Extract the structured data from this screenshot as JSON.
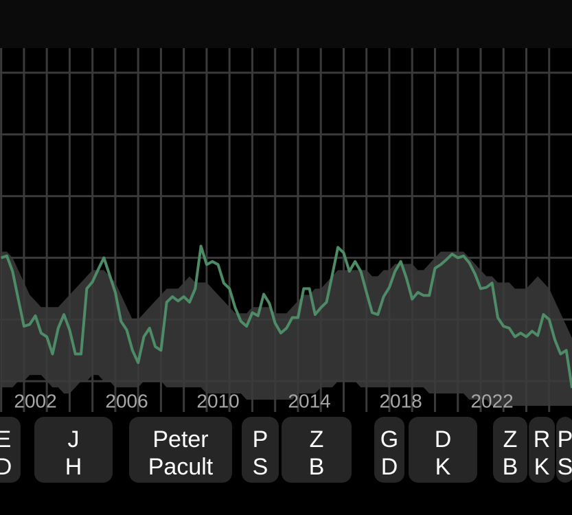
{
  "chart_data": {
    "type": "line",
    "xlim": [
      2000.95,
      2026
    ],
    "ylim": [
      5,
      64
    ],
    "xticks": [
      2002,
      2006,
      2010,
      2014,
      2018,
      2022
    ],
    "xgrid": [
      2001,
      2002,
      2003,
      2004,
      2005,
      2006,
      2007,
      2008,
      2009,
      2010,
      2011,
      2012,
      2013,
      2014,
      2015,
      2016,
      2017,
      2018,
      2019,
      2020,
      2021,
      2022,
      2023,
      2024,
      2025
    ],
    "yticks": [
      10,
      20,
      30,
      40,
      50,
      60
    ],
    "grid": true,
    "x": [
      2001,
      2001.25,
      2001.5,
      2001.75,
      2002,
      2002.25,
      2002.5,
      2002.75,
      2003,
      2003.25,
      2003.5,
      2003.75,
      2004,
      2004.25,
      2004.5,
      2004.75,
      2005,
      2005.25,
      2005.5,
      2005.75,
      2006,
      2006.25,
      2006.5,
      2006.75,
      2007,
      2007.25,
      2007.5,
      2007.75,
      2008,
      2008.25,
      2008.5,
      2008.75,
      2009,
      2009.25,
      2009.5,
      2009.75,
      2010,
      2010.25,
      2010.5,
      2010.75,
      2011,
      2011.25,
      2011.5,
      2011.75,
      2012,
      2012.25,
      2012.5,
      2012.75,
      2013,
      2013.25,
      2013.5,
      2013.75,
      2014,
      2014.25,
      2014.5,
      2014.75,
      2015,
      2015.25,
      2015.5,
      2015.75,
      2016,
      2016.25,
      2016.5,
      2016.75,
      2017,
      2017.25,
      2017.5,
      2017.75,
      2018,
      2018.25,
      2018.5,
      2018.75,
      2019,
      2019.25,
      2019.5,
      2019.75,
      2020,
      2020.25,
      2020.5,
      2020.75,
      2021,
      2021.25,
      2021.5,
      2021.75,
      2022,
      2022.25,
      2022.5,
      2022.75,
      2023,
      2023.25,
      2023.5,
      2023.75,
      2024,
      2024.25,
      2024.5,
      2024.75,
      2025,
      2025.25,
      2025.5,
      2025.75,
      2026
    ],
    "series": [
      {
        "color": "#4e8c68",
        "values": [
          30,
          30.3,
          27.8,
          23.3,
          18.9,
          19.2,
          20.6,
          17.8,
          17.2,
          14.4,
          18.6,
          20.8,
          18.3,
          14.4,
          14.4,
          25,
          26.1,
          28.1,
          30,
          27.2,
          24.4,
          19.7,
          18.3,
          15,
          13,
          17.2,
          18.6,
          15.6,
          15,
          22.8,
          23.7,
          23,
          23.7,
          22.8,
          25,
          31.9,
          28.9,
          29.4,
          28.9,
          25.9,
          25,
          21.9,
          19.7,
          18.9,
          21.1,
          20.6,
          24.1,
          22.6,
          19.4,
          17.8,
          18.6,
          20.3,
          20.3,
          25,
          25,
          20.8,
          21.9,
          22.8,
          27.2,
          31.7,
          30.8,
          27.8,
          29.4,
          27.8,
          24.4,
          21.1,
          20.8,
          23.7,
          25.2,
          27.8,
          29.4,
          26.7,
          23.3,
          24.4,
          23.9,
          23.9,
          28.3,
          28.9,
          29.7,
          30.6,
          30,
          30.3,
          29.2,
          27.4,
          25,
          25.2,
          25.9,
          20.3,
          18.9,
          18.6,
          17.2,
          17.8,
          17.2,
          18.1,
          17.4,
          20.8,
          20,
          16.7,
          14.4,
          15,
          8.9
        ]
      },
      {
        "color": "#333333",
        "values": [
          31,
          31,
          30,
          28,
          26,
          24,
          23,
          22,
          22,
          22,
          22,
          23,
          24,
          25,
          26,
          27,
          28,
          28,
          28,
          27,
          26,
          24,
          22,
          20,
          20,
          21,
          22,
          23,
          24,
          25,
          25,
          25,
          26,
          27,
          26,
          26,
          26,
          25,
          24,
          23,
          22,
          21,
          21,
          21,
          22,
          22,
          22,
          22,
          21,
          21,
          21,
          22,
          23,
          24,
          24,
          25,
          25,
          26,
          27,
          28,
          28,
          28,
          28,
          28,
          28,
          27,
          27,
          28,
          28,
          29,
          29,
          29,
          29,
          28,
          28,
          29,
          30,
          31,
          31,
          31,
          31,
          31,
          30,
          29,
          28,
          27,
          27,
          26,
          26,
          26,
          25,
          25,
          25,
          26,
          27,
          26,
          25,
          23,
          21,
          19,
          17
        ]
      },
      {
        "color": "#333333",
        "values": [
          9,
          9,
          9,
          10,
          10,
          11,
          11,
          11,
          10,
          9,
          9,
          8,
          8,
          9,
          10,
          10,
          11,
          11,
          10,
          10,
          9,
          9,
          9,
          9,
          9,
          10,
          10,
          10,
          10,
          9,
          9,
          9,
          9,
          9,
          9,
          9,
          8,
          8,
          8,
          8,
          8,
          8,
          8,
          7,
          7,
          7,
          7,
          7,
          7,
          7,
          7,
          7,
          8,
          8,
          8,
          8,
          9,
          9,
          9,
          10,
          10,
          10,
          10,
          9,
          9,
          9,
          9,
          9,
          9,
          9,
          9,
          9,
          9,
          9,
          9,
          8,
          8,
          8,
          8,
          8,
          8,
          8,
          7,
          7,
          7,
          7,
          6,
          6,
          6,
          6,
          6,
          6,
          6,
          6,
          6,
          6,
          6,
          6,
          6,
          6,
          6
        ]
      }
    ],
    "leaders": [
      [
        "E",
        "D"
      ],
      [
        "J",
        "H"
      ],
      [
        "Peter",
        "Pacult"
      ],
      [
        "P",
        "S"
      ],
      [
        "Z",
        "B"
      ],
      [
        "G",
        "D"
      ],
      [
        "D",
        "K"
      ],
      [
        "Z",
        "B"
      ],
      [
        "R",
        "K"
      ],
      [
        "P",
        "S"
      ]
    ]
  }
}
